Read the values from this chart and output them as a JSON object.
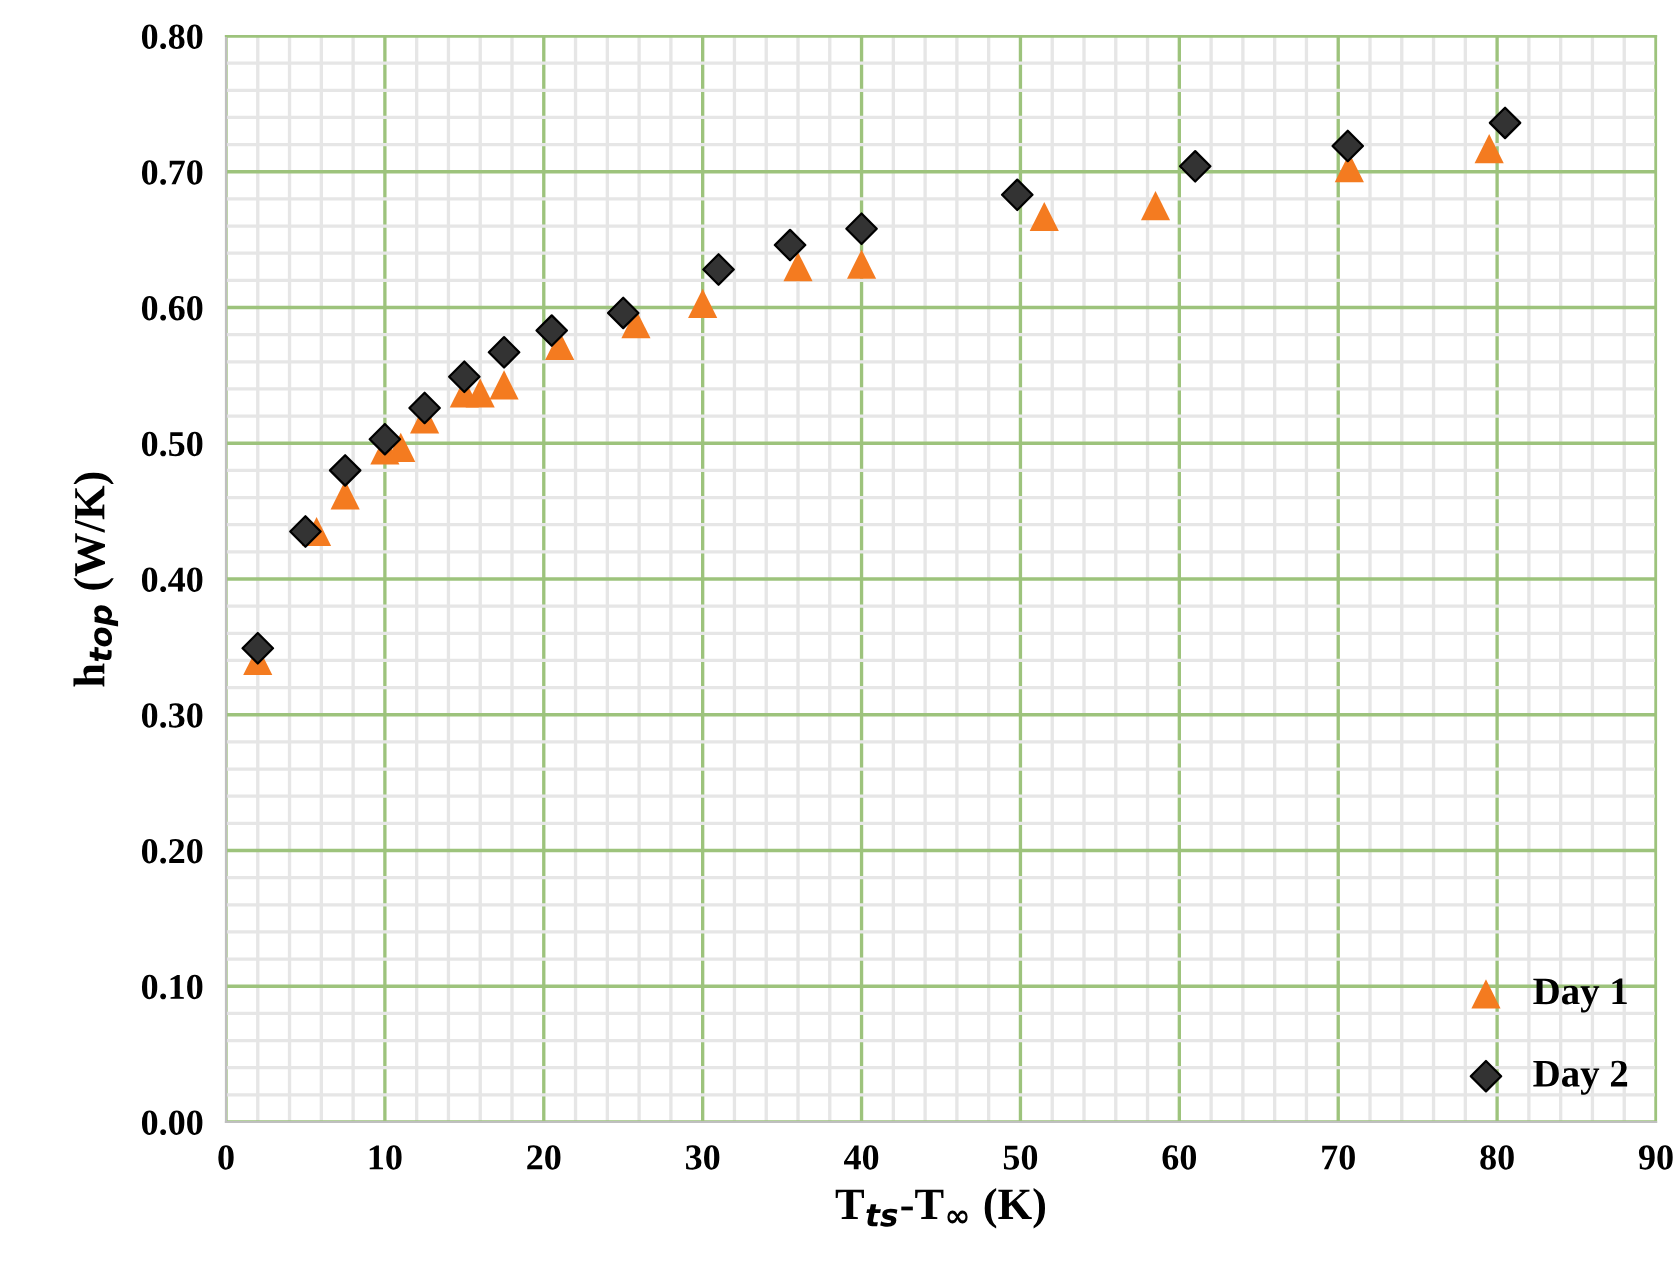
{
  "chart_data": {
    "type": "scatter",
    "xlabel": "T$_{ts}$-T$_{∞}$ (K)",
    "ylabel": "h$_{top}$ (W/K)",
    "xlim": [
      0,
      90
    ],
    "xticks": [
      0,
      10,
      20,
      30,
      40,
      50,
      60,
      70,
      80,
      90
    ],
    "ylim": [
      0,
      0.8
    ],
    "yticks": [
      {
        "value": 0,
        "label": "0.00"
      },
      {
        "value": 0.1,
        "label": "0.10"
      },
      {
        "value": 0.2,
        "label": "0.20"
      },
      {
        "value": 0.3,
        "label": "0.30"
      },
      {
        "value": 0.4,
        "label": "0.40"
      },
      {
        "value": 0.5,
        "label": "0.50"
      },
      {
        "value": 0.6,
        "label": "0.60"
      },
      {
        "value": 0.7,
        "label": "0.70"
      },
      {
        "value": 0.8,
        "label": "0.80"
      }
    ],
    "grid": true,
    "legend": "bottom right",
    "series": [
      {
        "name": "Day 1",
        "color": "#f47b20",
        "marker": "triangle",
        "x": [
          2,
          5.7,
          7.5,
          10,
          11,
          12.5,
          15,
          16,
          17.5,
          21,
          25.8,
          30,
          36,
          40,
          51.5,
          58.5,
          70.7,
          79.5
        ],
        "values": [
          0.34,
          0.435,
          0.462,
          0.495,
          0.497,
          0.518,
          0.537,
          0.537,
          0.543,
          0.572,
          0.588,
          0.603,
          0.63,
          0.632,
          0.667,
          0.675,
          0.703,
          0.717
        ]
      },
      {
        "name": "Day 2",
        "color": "#333333",
        "marker": "diamond",
        "x": [
          2,
          5,
          7.5,
          10,
          12.5,
          15,
          17.5,
          20.5,
          25,
          31,
          35.5,
          40,
          49.8,
          61,
          70.6,
          80.5
        ],
        "values": [
          0.349,
          0.435,
          0.48,
          0.503,
          0.526,
          0.549,
          0.567,
          0.583,
          0.596,
          0.628,
          0.646,
          0.658,
          0.683,
          0.704,
          0.719,
          0.736
        ]
      }
    ]
  }
}
